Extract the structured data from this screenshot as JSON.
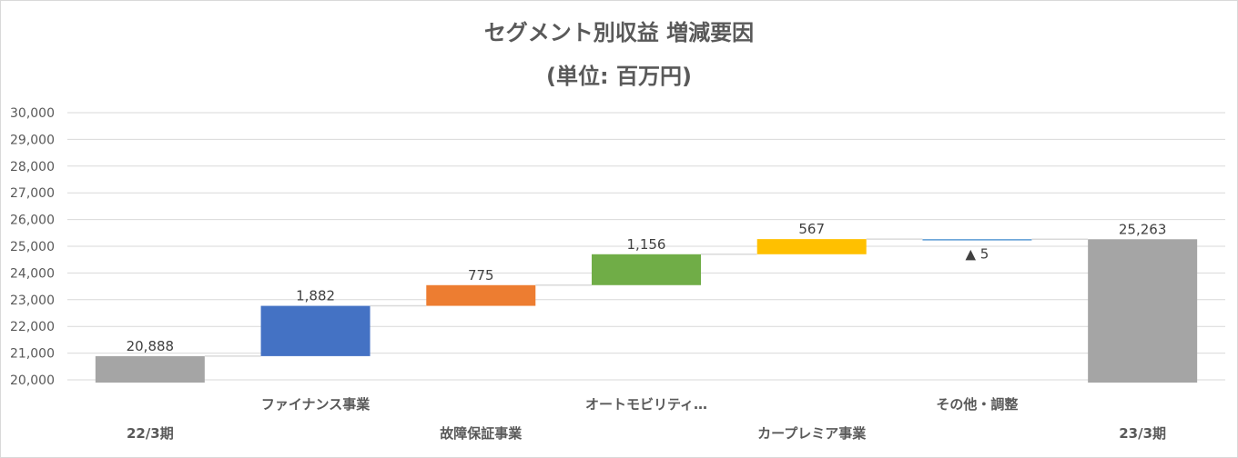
{
  "chart_data": {
    "type": "waterfall",
    "title": "セグメント別収益 増減要因",
    "subtitle": "(単位: 百万円)",
    "ylim": [
      20000,
      30000
    ],
    "yticks": [
      "20,000",
      "21,000",
      "22,000",
      "23,000",
      "24,000",
      "25,000",
      "26,000",
      "27,000",
      "28,000",
      "29,000",
      "30,000"
    ],
    "grid": true,
    "categories": [
      "22/3期",
      "ファイナンス事業",
      "故障保証事業",
      "オートモビリティ…",
      "カープレミア事業",
      "その他・調整",
      "23/3期"
    ],
    "steps": [
      {
        "kind": "total",
        "value": 20888,
        "label": "20,888",
        "color": "#a5a5a5"
      },
      {
        "kind": "delta",
        "value": 1882,
        "label": "1,882",
        "color": "#4472c4"
      },
      {
        "kind": "delta",
        "value": 775,
        "label": "775",
        "color": "#ed7d31"
      },
      {
        "kind": "delta",
        "value": 1156,
        "label": "1,156",
        "color": "#70ad47"
      },
      {
        "kind": "delta",
        "value": 567,
        "label": "567",
        "color": "#ffc000"
      },
      {
        "kind": "delta",
        "value": -5,
        "label": "▲ 5",
        "color": "#5b9bd5"
      },
      {
        "kind": "total",
        "value": 25263,
        "label": "25,263",
        "color": "#a5a5a5"
      }
    ]
  }
}
